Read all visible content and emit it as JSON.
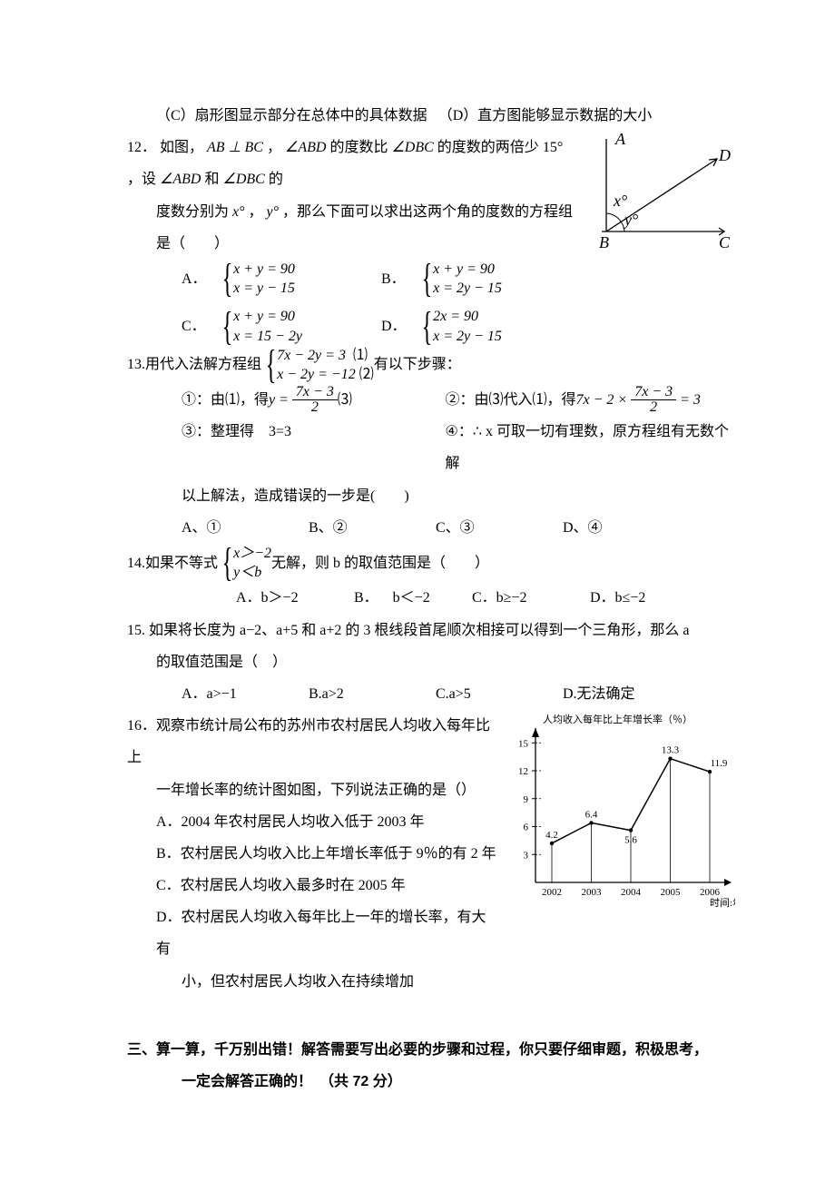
{
  "q11": {
    "opt_c": "（C）扇形图显示部分在总体中的具体数据",
    "opt_d": "（D）直方图能够显示数据的大小"
  },
  "q12": {
    "num": "12．",
    "stem1": "如图，",
    "ab_bc": "AB ⊥ BC",
    "stem2": "，",
    "abd": "∠ABD",
    "stem3": " 的度数比",
    "dbc": "∠DBC",
    "stem4": " 的度数的两倍少",
    "deg15": "15°",
    "stem5": "，设",
    "abd2": "∠ABD",
    "and": "和",
    "dbc2": "∠DBC",
    "stem6": "的",
    "line2a": "度数分别为",
    "x": "x°",
    "comma": "，",
    "y": "y°",
    "line2b": "，那么下面可以求出这两个角的度数的方程组是（　　）",
    "A": "A．",
    "B": "B．",
    "C": "C．",
    "D": "D．",
    "A1": "x + y = 90",
    "A2": "x = y − 15",
    "B1": "x + y = 90",
    "B2": "x = 2y − 15",
    "C1": "x + y = 90",
    "C2": "x = 15 − 2y",
    "D1": "2x = 90",
    "D2": "x = 2y − 15",
    "fig": {
      "A": "A",
      "B": "B",
      "C": "C",
      "D": "D",
      "xdeg": "x°",
      "ydeg": "y°",
      "line_color": "#000000",
      "label_fontsize": 18
    }
  },
  "q13": {
    "num": "13.",
    "stem": "用代入法解方程组",
    "eq1": "7x − 2y = 3",
    "eq1_tag": "⑴",
    "eq2": "x − 2y = −12",
    "eq2_tag": "⑵",
    "tail": " 有以下步骤：",
    "step1_lead": "①：由⑴，得 ",
    "step1_y": "y =",
    "frac1_num": "7x − 3",
    "frac1_den": "2",
    "step1_tag": "  ⑶",
    "step2_lead": "②：由⑶代入⑴，得 ",
    "step2_a": "7x − 2 ×",
    "frac2_num": "7x − 3",
    "frac2_den": "2",
    "step2_b": "= 3",
    "step3": "③：整理得　3=3",
    "step4": "④：∴ x 可取一切有理数，原方程组有无数个解",
    "closing": "以上解法，造成错误的一步是(　　)",
    "optA": "A、①",
    "optB": "B、②",
    "optC": "C、③",
    "optD": "D、④"
  },
  "q14": {
    "num": "14.",
    "stem1": "如果不等式",
    "eq1": "x＞−2",
    "eq2": "y＜b",
    "stem2": "无解，则 b 的取值范围是（　　）",
    "optA": "A．b＞−2",
    "optB": "B． b＜−2",
    "optC": "C．b≥−2",
    "optD": "D．b≤−2"
  },
  "q15": {
    "num": "15.",
    "stem": "如果将长度为 a−2、a+5 和 a+2 的 3 根线段首尾顺次相接可以得到一个三角形，那么 a",
    "stem2": "的取值范围是（　）",
    "optA": "A．a>−1",
    "optB": "B.a>2",
    "optC": "C.a>5",
    "optD": "D.无法确定"
  },
  "q16": {
    "num": "16．",
    "stem1": "观察市统计局公布的苏州市农村居民人均收入每年比上",
    "stem2": "一年增长率的统计图如图，下列说法正确的是（）",
    "optA": "A．2004 年农村居民人均收入低于 2003 年",
    "optB": "B．农村居民人均收入比上年增长率低于 9％的有 2 年",
    "optC": "C．农村居民人均收入最多时在 2005 年",
    "optD_1": "D．农村居民人均收入每年比上一年的增长率，有大有",
    "optD_2": "小，但农村居民人均收入在持续增加",
    "chart": {
      "type": "line",
      "title": "人均收入每年比上年增长率（％）",
      "x_title": "时间:年",
      "years": [
        "2002",
        "2003",
        "2004",
        "2005",
        "2006"
      ],
      "values": [
        4.2,
        6.4,
        5.6,
        13.3,
        11.9
      ],
      "value_labels": [
        "4.2",
        "6.4",
        "5.6",
        "13.3",
        "11.9"
      ],
      "yticks": [
        3,
        6,
        9,
        12,
        15
      ],
      "ylim": [
        0,
        16
      ],
      "axis_color": "#000000",
      "line_color": "#000000",
      "label_fontsize": 11,
      "title_fontsize": 11
    }
  },
  "section3": {
    "lead": "三、",
    "text1": "算一算，千万别出错！解答需要写出必要的步骤和过程，你只要仔细审题，积极思考，",
    "text2": "一定会解答正确的！　（共 72 分）"
  }
}
